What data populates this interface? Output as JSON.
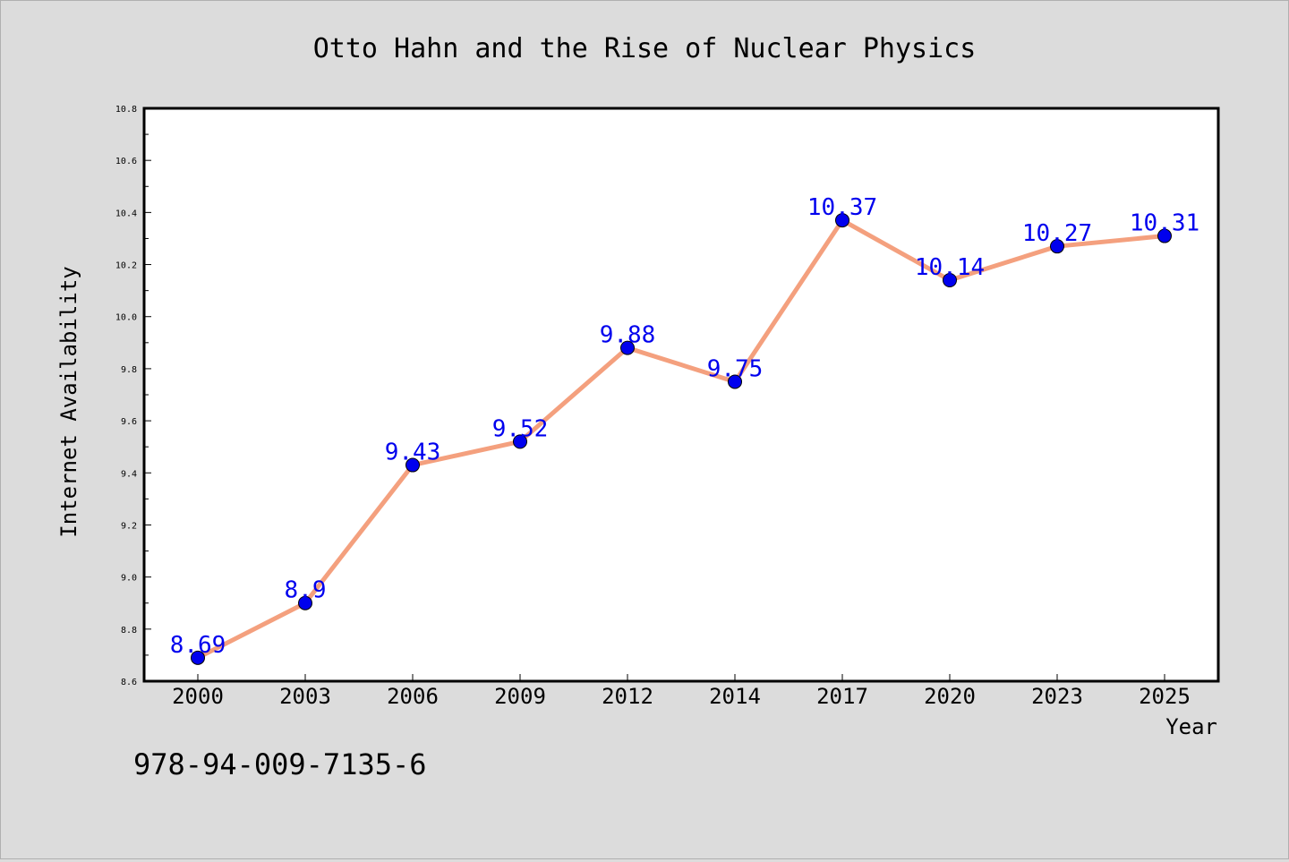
{
  "chart_data": {
    "type": "line",
    "title": "Otto Hahn and the Rise of Nuclear Physics",
    "xlabel": "Year",
    "ylabel": "Internet Availability",
    "categories": [
      "2000",
      "2003",
      "2006",
      "2009",
      "2012",
      "2014",
      "2017",
      "2020",
      "2023",
      "2025"
    ],
    "series": [
      {
        "values": [
          8.69,
          8.9,
          9.43,
          9.52,
          9.88,
          9.75,
          10.37,
          10.14,
          10.27,
          10.31
        ],
        "labels": [
          "8.69",
          "8.9",
          "9.43",
          "9.52",
          "9.88",
          "9.75",
          "10.37",
          "10.14",
          "10.27",
          "10.31"
        ],
        "line_color": "#f4a07e",
        "marker_color": "#0000ee"
      }
    ],
    "ylim": [
      8.6,
      10.8
    ],
    "yticks": [
      "8.6",
      "8.8",
      "9.0",
      "9.2",
      "9.4",
      "9.6",
      "9.8",
      "10.0",
      "10.2",
      "10.4",
      "10.6",
      "10.8"
    ],
    "grid": false,
    "legend": false
  },
  "footer": {
    "isbn": "978-94-009-7135-6"
  }
}
